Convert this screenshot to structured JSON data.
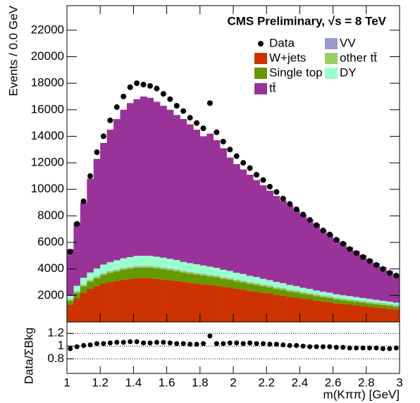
{
  "chart_data": [
    {
      "type": "histogram",
      "header": "CMS Preliminary, √s = 8 TeV",
      "ylabel": "Events / 0.0 GeV",
      "bins": [
        1.0,
        1.04,
        1.08,
        1.12,
        1.16,
        1.2,
        1.24,
        1.28,
        1.32,
        1.36,
        1.4,
        1.44,
        1.48,
        1.52,
        1.56,
        1.6,
        1.64,
        1.68,
        1.72,
        1.76,
        1.8,
        1.84,
        1.88,
        1.92,
        1.96,
        2.0,
        2.04,
        2.08,
        2.12,
        2.16,
        2.2,
        2.24,
        2.28,
        2.32,
        2.36,
        2.4,
        2.44,
        2.48,
        2.52,
        2.56,
        2.6,
        2.64,
        2.68,
        2.72,
        2.76,
        2.8,
        2.84,
        2.88,
        2.92,
        2.96,
        3.0
      ],
      "xlim": [
        1,
        3
      ],
      "ylim": [
        0,
        23850
      ],
      "yticks": [
        2000,
        4000,
        6000,
        8000,
        10000,
        12000,
        14000,
        16000,
        18000,
        20000,
        22000
      ],
      "stacked": true,
      "series": [
        {
          "name": "W+jets",
          "color": "#cc3300",
          "values": [
            1300,
            1800,
            2200,
            2500,
            2700,
            2900,
            3000,
            3100,
            3200,
            3250,
            3300,
            3300,
            3300,
            3250,
            3200,
            3150,
            3100,
            3000,
            2950,
            2900,
            2850,
            2800,
            2750,
            2650,
            2600,
            2500,
            2450,
            2350,
            2300,
            2200,
            2150,
            2050,
            2000,
            1900,
            1850,
            1750,
            1700,
            1600,
            1550,
            1500,
            1400,
            1350,
            1300,
            1250,
            1200,
            1150,
            1100,
            1050,
            1000,
            950
          ]
        },
        {
          "name": "Single top",
          "color": "#669900",
          "values": [
            300,
            400,
            500,
            550,
            600,
            650,
            700,
            720,
            750,
            770,
            800,
            800,
            800,
            790,
            780,
            760,
            740,
            720,
            700,
            680,
            660,
            640,
            620,
            600,
            580,
            560,
            540,
            520,
            500,
            480,
            460,
            440,
            420,
            400,
            390,
            370,
            360,
            340,
            330,
            310,
            300,
            290,
            280,
            270,
            260,
            250,
            240,
            230,
            220,
            210
          ]
        },
        {
          "name": "other tt̄",
          "color": "#99cc66",
          "values": [
            100,
            100,
            100,
            100,
            100,
            100,
            100,
            100,
            100,
            100,
            100,
            100,
            100,
            100,
            100,
            100,
            100,
            100,
            100,
            100,
            100,
            100,
            100,
            100,
            100,
            100,
            100,
            100,
            100,
            100,
            100,
            100,
            100,
            100,
            100,
            100,
            100,
            100,
            100,
            100,
            100,
            100,
            100,
            100,
            100,
            100,
            100,
            100,
            100,
            100
          ]
        },
        {
          "name": "VV",
          "color": "#9999cc",
          "values": [
            30,
            30,
            30,
            30,
            30,
            30,
            30,
            30,
            30,
            30,
            30,
            30,
            30,
            30,
            30,
            30,
            30,
            30,
            30,
            30,
            30,
            30,
            30,
            30,
            30,
            30,
            30,
            30,
            30,
            30,
            30,
            30,
            30,
            30,
            30,
            30,
            30,
            30,
            30,
            30,
            30,
            30,
            30,
            30,
            30,
            30,
            30,
            30,
            30,
            30
          ]
        },
        {
          "name": "DY",
          "color": "#99ffcc",
          "values": [
            250,
            400,
            500,
            550,
            600,
            650,
            680,
            700,
            720,
            740,
            760,
            760,
            760,
            750,
            740,
            720,
            700,
            680,
            660,
            640,
            620,
            600,
            580,
            560,
            540,
            520,
            500,
            480,
            460,
            440,
            420,
            400,
            380,
            360,
            340,
            330,
            310,
            300,
            280,
            270,
            260,
            250,
            240,
            230,
            220,
            210,
            200,
            190,
            180,
            170
          ]
        },
        {
          "name": "tt̄",
          "color": "#993399",
          "values": [
            3520,
            4770,
            5670,
            7070,
            8270,
            9170,
            9990,
            10650,
            11200,
            11610,
            11810,
            12010,
            11910,
            11680,
            11450,
            11240,
            10930,
            10770,
            10460,
            10150,
            9740,
            10030,
            9620,
            9160,
            8550,
            8190,
            7880,
            7620,
            7310,
            7050,
            6740,
            6480,
            6220,
            6010,
            5740,
            5520,
            5250,
            5030,
            4660,
            4440,
            4210,
            3980,
            3700,
            3470,
            3240,
            3010,
            2780,
            2550,
            2320,
            2140
          ]
        }
      ],
      "data": {
        "name": "Data",
        "color": "#000000",
        "values": [
          5300,
          7400,
          9100,
          11000,
          12800,
          14000,
          15200,
          16200,
          17000,
          17700,
          18000,
          17900,
          17800,
          17600,
          17200,
          16800,
          16300,
          15900,
          15400,
          15000,
          14600,
          16500,
          14300,
          13600,
          13000,
          12500,
          12000,
          11600,
          11100,
          10700,
          10200,
          9800,
          9300,
          8900,
          8500,
          8100,
          7700,
          7300,
          6900,
          6600,
          6200,
          5900,
          5500,
          5200,
          4900,
          4600,
          4300,
          4000,
          3700,
          3500
        ]
      }
    },
    {
      "type": "ratio",
      "ylabel": "Data/ΣBkg",
      "xlabel": "m(Kππ) [GeV]",
      "xlim": [
        1,
        3
      ],
      "xticks": [
        1,
        1.2,
        1.4,
        1.6,
        1.8,
        2,
        2.2,
        2.4,
        2.6,
        2.8,
        3
      ],
      "ylim": [
        0.57,
        1.38
      ],
      "yticks": [
        0.8,
        1,
        1.2
      ],
      "grid": true,
      "values": [
        0.96,
        0.99,
        1.01,
        1.02,
        1.04,
        1.04,
        1.05,
        1.06,
        1.06,
        1.07,
        1.07,
        1.05,
        1.05,
        1.06,
        1.06,
        1.05,
        1.04,
        1.04,
        1.03,
        1.03,
        1.04,
        1.16,
        1.04,
        1.04,
        1.05,
        1.05,
        1.04,
        1.05,
        1.04,
        1.04,
        1.03,
        1.03,
        1.02,
        1.01,
        1.01,
        1.0,
        0.99,
        0.99,
        0.99,
        0.99,
        0.98,
        0.98,
        0.97,
        0.97,
        0.97,
        0.97,
        0.97,
        0.96,
        0.96,
        0.97
      ]
    }
  ]
}
